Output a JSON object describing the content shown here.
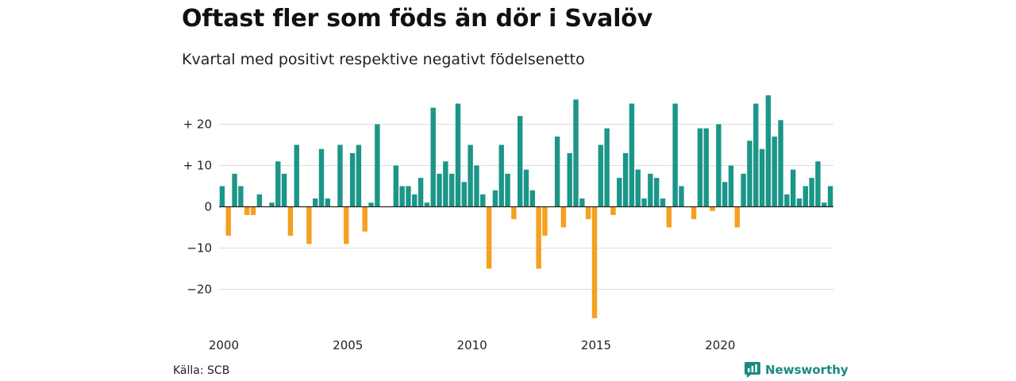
{
  "header": {
    "title": "Oftast fler som föds än dör i Svalöv",
    "subtitle": "Kvartal med positivt respektive negativt födelsenetto"
  },
  "footer": {
    "source": "Källa: SCB",
    "brand": "Newsworthy"
  },
  "colors": {
    "positive": "#1b9688",
    "negative": "#f5a01e",
    "grid": "#dddddd"
  },
  "chart_data": {
    "type": "bar",
    "title": "Oftast fler som föds än dör i Svalöv",
    "subtitle": "Kvartal med positivt respektive negativt födelsenetto",
    "ylim": [
      -28,
      28
    ],
    "yticks": [
      {
        "value": 20,
        "label": "+ 20"
      },
      {
        "value": 10,
        "label": "+ 10"
      },
      {
        "value": 0,
        "label": "0"
      },
      {
        "value": -10,
        "label": "−10"
      },
      {
        "value": -20,
        "label": "−20"
      }
    ],
    "xticks": [
      {
        "index": 0,
        "label": "2000"
      },
      {
        "index": 20,
        "label": "2005"
      },
      {
        "index": 40,
        "label": "2010"
      },
      {
        "index": 60,
        "label": "2015"
      },
      {
        "index": 80,
        "label": "2020"
      }
    ],
    "start": "2000 Q1",
    "grid": true,
    "values": [
      5,
      -7,
      8,
      5,
      -2,
      -2,
      3,
      0,
      1,
      11,
      8,
      -7,
      15,
      0,
      -9,
      2,
      14,
      2,
      0,
      15,
      -9,
      13,
      15,
      -6,
      1,
      20,
      0,
      0,
      10,
      5,
      5,
      3,
      7,
      1,
      24,
      8,
      11,
      8,
      25,
      6,
      15,
      10,
      3,
      -15,
      4,
      15,
      8,
      -3,
      22,
      9,
      4,
      -15,
      -7,
      0,
      17,
      -5,
      13,
      26,
      2,
      -3,
      -27,
      15,
      19,
      -2,
      7,
      13,
      25,
      9,
      2,
      8,
      7,
      2,
      -5,
      25,
      5,
      0,
      -3,
      19,
      19,
      -1,
      20,
      6,
      10,
      -5,
      8,
      16,
      25,
      14,
      27,
      17,
      21,
      3,
      9,
      2,
      5,
      7,
      11,
      1,
      5
    ]
  }
}
